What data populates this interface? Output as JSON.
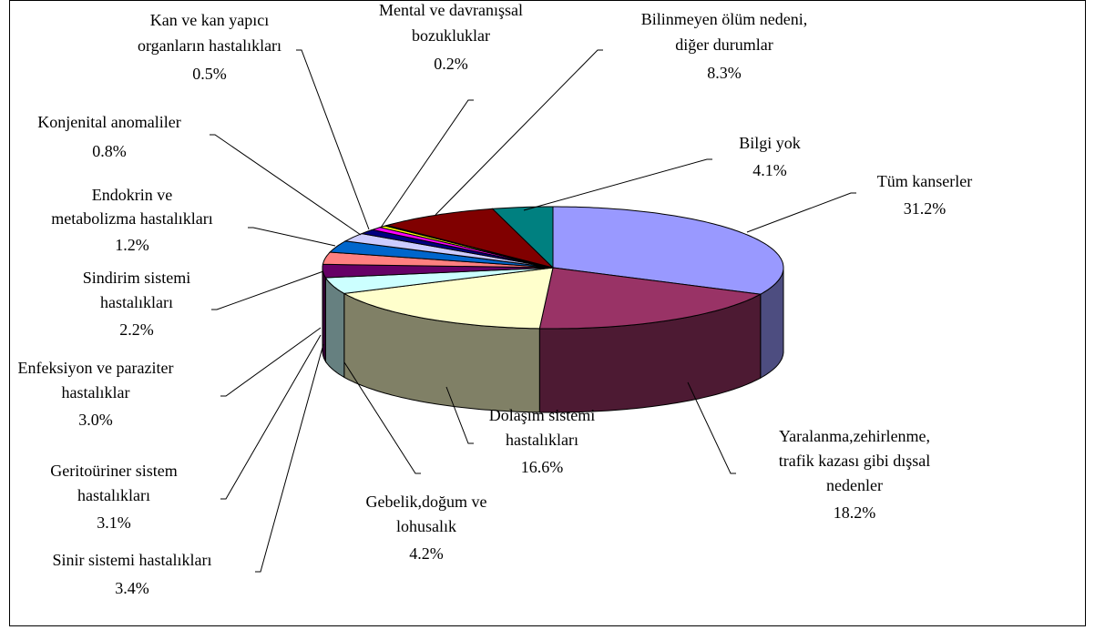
{
  "chart_data": {
    "type": "pie",
    "categories": [
      "Tüm kanserler",
      "Yaralanma,zehirlenme,\ntrafik kazası gibi dışsal\nnedenler",
      "Dolaşım sistemi\nhastalıkları",
      "Gebelik,doğum ve\nlohusalık",
      "Sinir sistemi hastalıkları",
      "Geritoüriner sistem\nhastalıkları",
      "Enfeksiyon ve paraziter\nhastalıklar",
      "Sindirim sistemi\nhastalıkları",
      "Endokrin ve\nmetabolizma hastalıkları",
      "Konjenital anomaliler",
      "Kan ve kan yapıcı\norganların hastalıkları",
      "Mental ve davranışsal\nbozukluklar",
      "Bilinmeyen ölüm nedeni,\ndiğer durumlar",
      "Bilgi yok"
    ],
    "values": [
      31.2,
      18.2,
      16.6,
      4.2,
      3.4,
      3.1,
      3.0,
      2.2,
      1.2,
      0.8,
      0.5,
      0.2,
      8.3,
      4.1
    ],
    "value_labels": [
      "31.2%",
      "18.2%",
      "16.6%",
      "4.2%",
      "3.4%",
      "3.1%",
      "3.0%",
      "2.2%",
      "1.2%",
      "0.8%",
      "0.5%",
      "0.2%",
      "8.3%",
      "4.1%"
    ],
    "colors": [
      "#9999ff",
      "#993366",
      "#ffffcc",
      "#ccffff",
      "#660066",
      "#ff8080",
      "#0066cc",
      "#ccccff",
      "#000080",
      "#ff00ff",
      "#ffff00",
      "#00ffff",
      "#800000",
      "#008080"
    ]
  }
}
